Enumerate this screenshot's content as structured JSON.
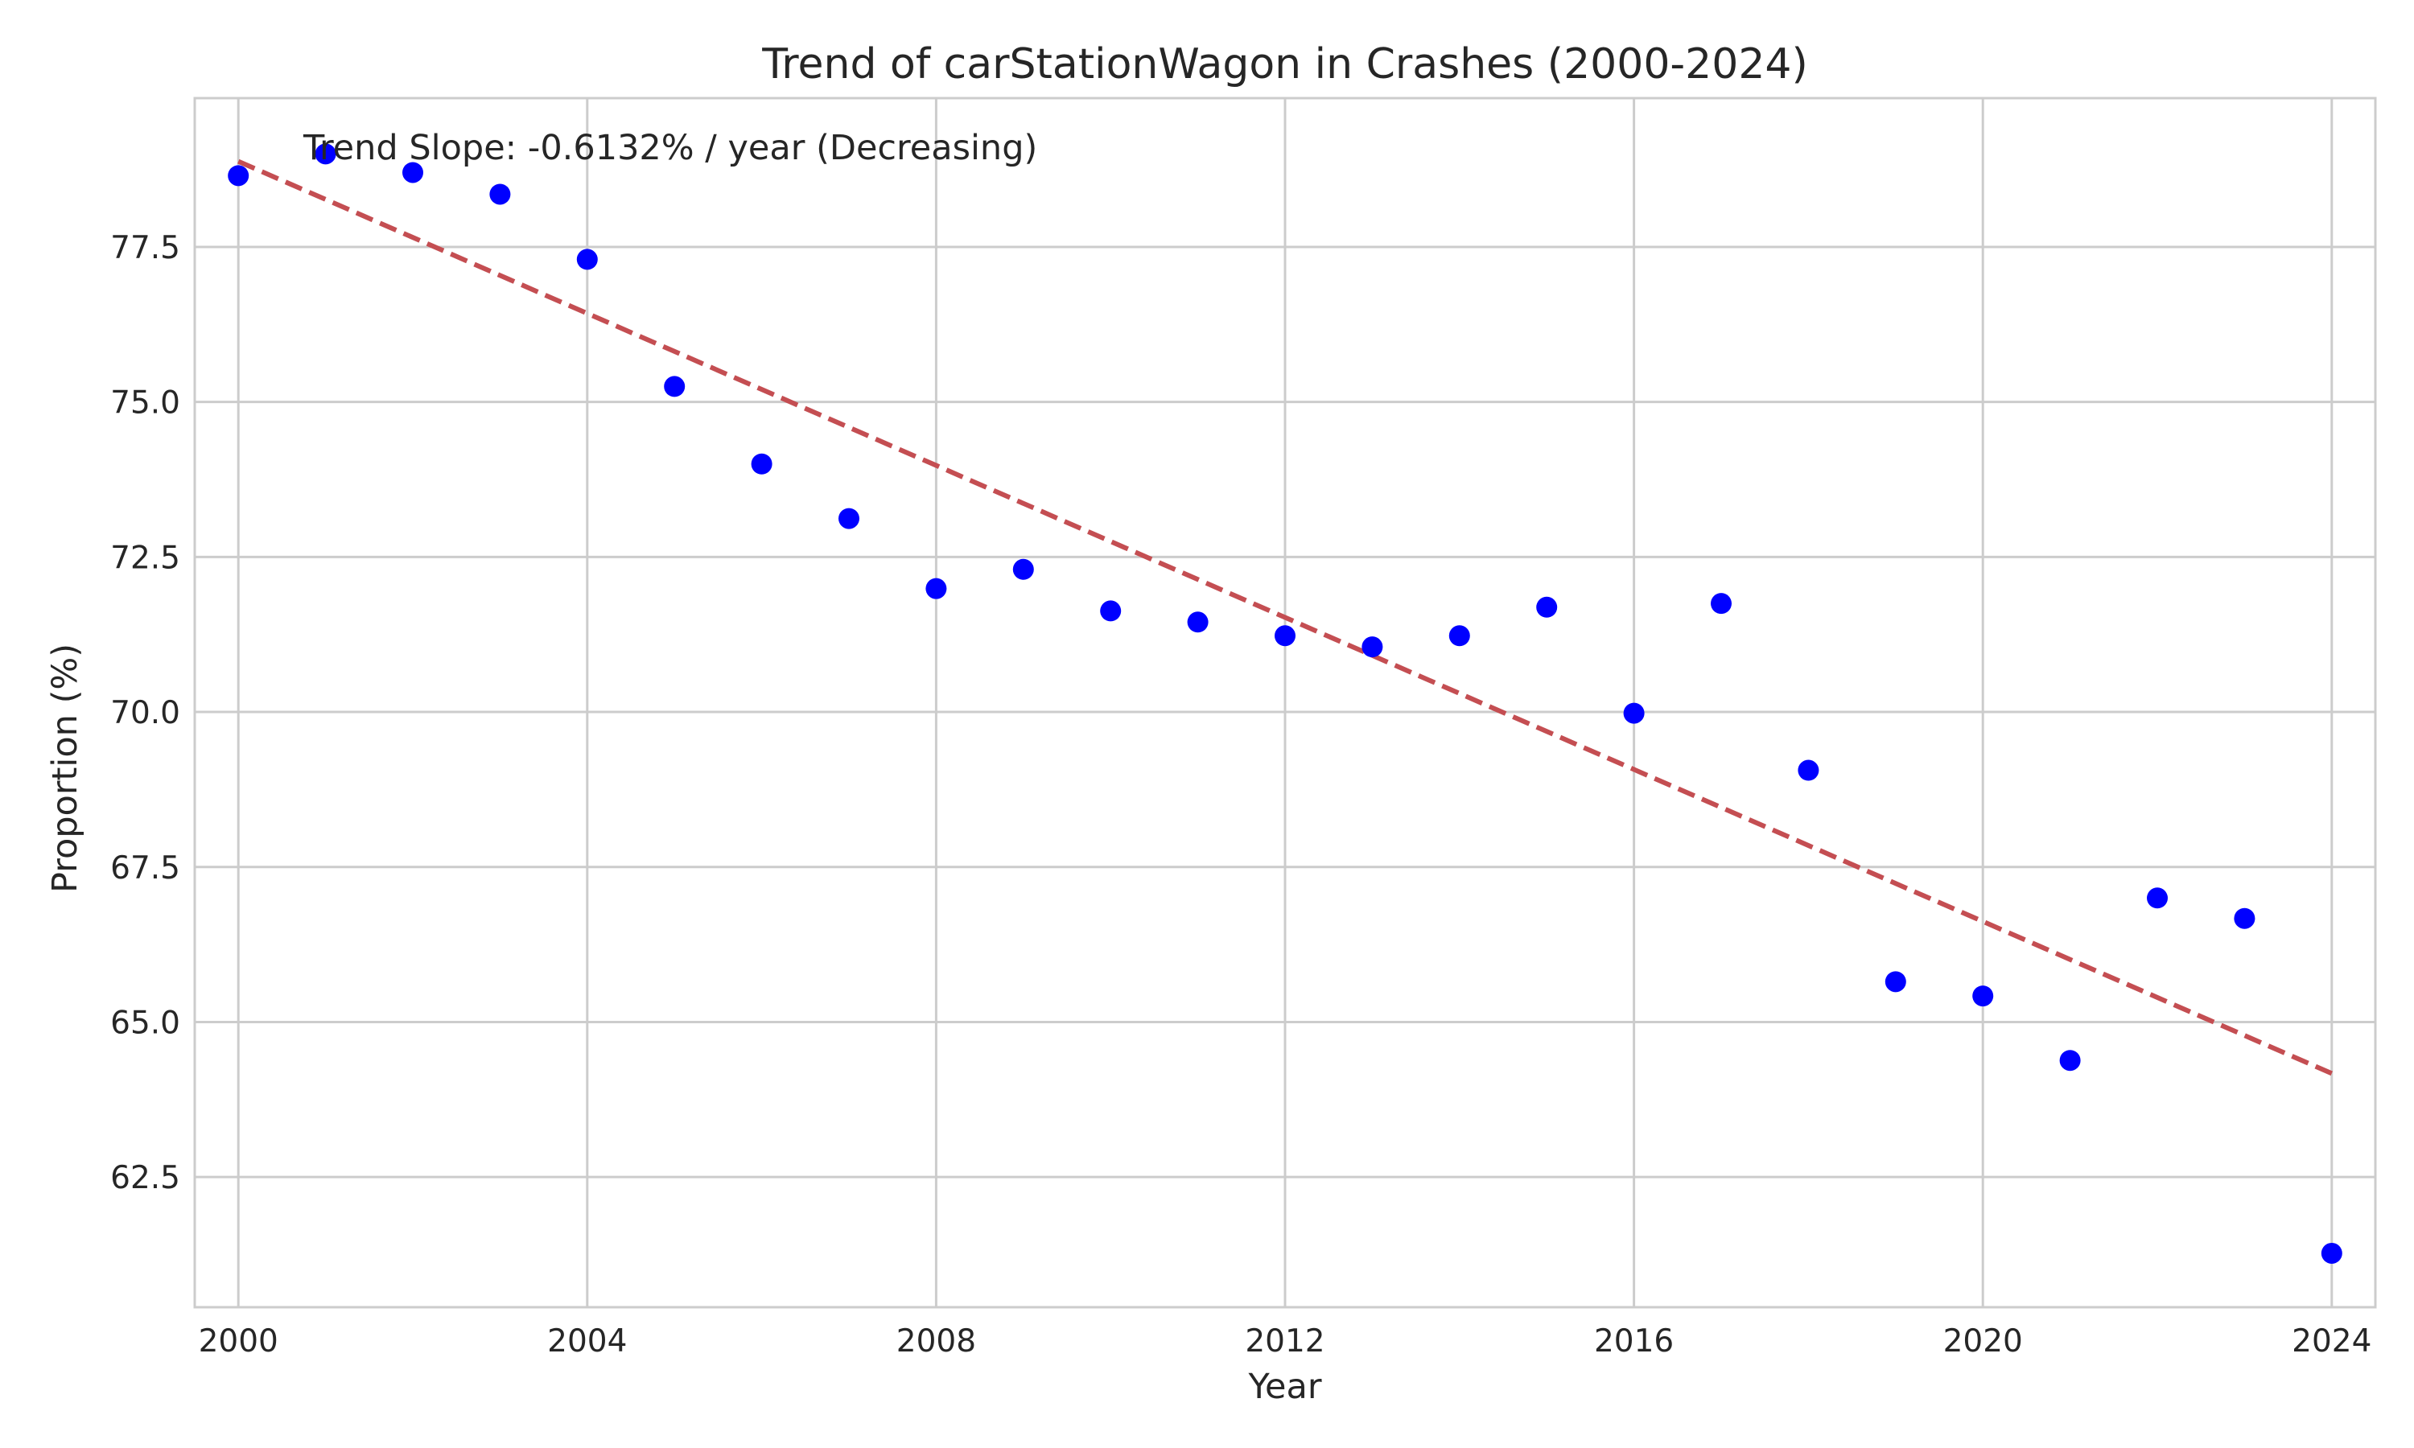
{
  "chart_data": {
    "type": "scatter",
    "title": "Trend of carStationWagon in Crashes (2000-2024)",
    "xlabel": "Year",
    "ylabel": "Proportion (%)",
    "xlim": [
      1999.5,
      2024.5
    ],
    "ylim": [
      60.4,
      79.9
    ],
    "xticks": [
      2000,
      2004,
      2008,
      2012,
      2016,
      2020,
      2024
    ],
    "yticks": [
      62.5,
      65.0,
      67.5,
      70.0,
      72.5,
      75.0,
      77.5
    ],
    "grid": true,
    "series": [
      {
        "color": "#0000ff",
        "points": [
          {
            "x": 2000,
            "y": 78.65
          },
          {
            "x": 2001,
            "y": 79.0
          },
          {
            "x": 2002,
            "y": 78.7
          },
          {
            "x": 2003,
            "y": 78.35
          },
          {
            "x": 2004,
            "y": 77.3
          },
          {
            "x": 2005,
            "y": 75.25
          },
          {
            "x": 2006,
            "y": 74.0
          },
          {
            "x": 2007,
            "y": 73.12
          },
          {
            "x": 2008,
            "y": 71.99
          },
          {
            "x": 2009,
            "y": 72.3
          },
          {
            "x": 2010,
            "y": 71.63
          },
          {
            "x": 2011,
            "y": 71.45
          },
          {
            "x": 2012,
            "y": 71.23
          },
          {
            "x": 2013,
            "y": 71.05
          },
          {
            "x": 2014,
            "y": 71.23
          },
          {
            "x": 2015,
            "y": 71.69
          },
          {
            "x": 2016,
            "y": 69.98
          },
          {
            "x": 2017,
            "y": 71.75
          },
          {
            "x": 2018,
            "y": 69.06
          },
          {
            "x": 2019,
            "y": 65.65
          },
          {
            "x": 2020,
            "y": 65.42
          },
          {
            "x": 2021,
            "y": 64.38
          },
          {
            "x": 2022,
            "y": 67.0
          },
          {
            "x": 2023,
            "y": 66.67
          },
          {
            "x": 2024,
            "y": 61.27
          }
        ]
      }
    ],
    "trend_line": {
      "color": "#c44e52",
      "style": "dashed",
      "x": [
        2000,
        2024
      ],
      "y": [
        78.88,
        64.17
      ]
    },
    "annotation": {
      "text": "Trend Slope: -0.6132% / year (Decreasing)"
    },
    "colors": {
      "background": "#ffffff",
      "grid": "#cccccc",
      "text": "#262626"
    }
  }
}
